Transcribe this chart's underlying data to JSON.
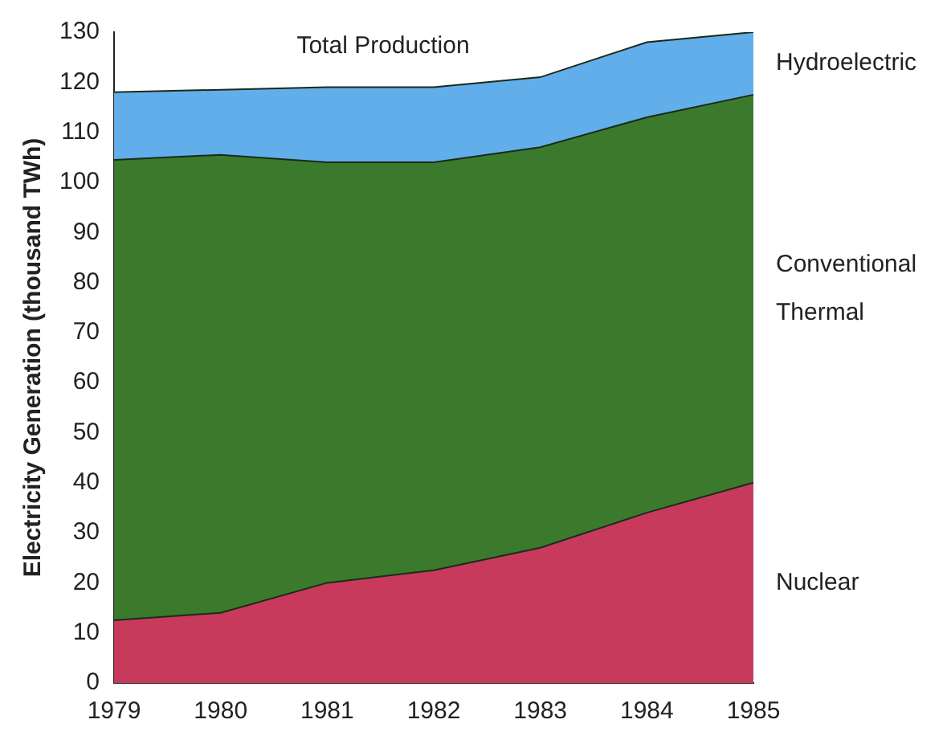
{
  "chart_data": {
    "type": "area",
    "title": "Total Production",
    "ylabel": "Electricity Generation (thousand TWh)",
    "categories": [
      "1979",
      "1980",
      "1981",
      "1982",
      "1983",
      "1984",
      "1985"
    ],
    "stacked": true,
    "series": [
      {
        "name": "Nuclear",
        "color": "#c83a5c",
        "values": [
          12.5,
          14,
          20,
          22.5,
          27,
          34,
          40
        ]
      },
      {
        "name": "Conventional Thermal",
        "color": "#3b7a2c",
        "values": [
          92,
          91.5,
          84,
          81.5,
          80,
          79,
          77.5
        ]
      },
      {
        "name": "Hydroelectric",
        "color": "#62aeea",
        "values": [
          13.5,
          13,
          15,
          15,
          14,
          15,
          12.5
        ]
      }
    ],
    "ylim": [
      0,
      130
    ],
    "yticks": [
      0,
      10,
      20,
      30,
      40,
      50,
      60,
      70,
      80,
      90,
      100,
      110,
      120,
      130
    ],
    "grid": false,
    "legend": false
  }
}
